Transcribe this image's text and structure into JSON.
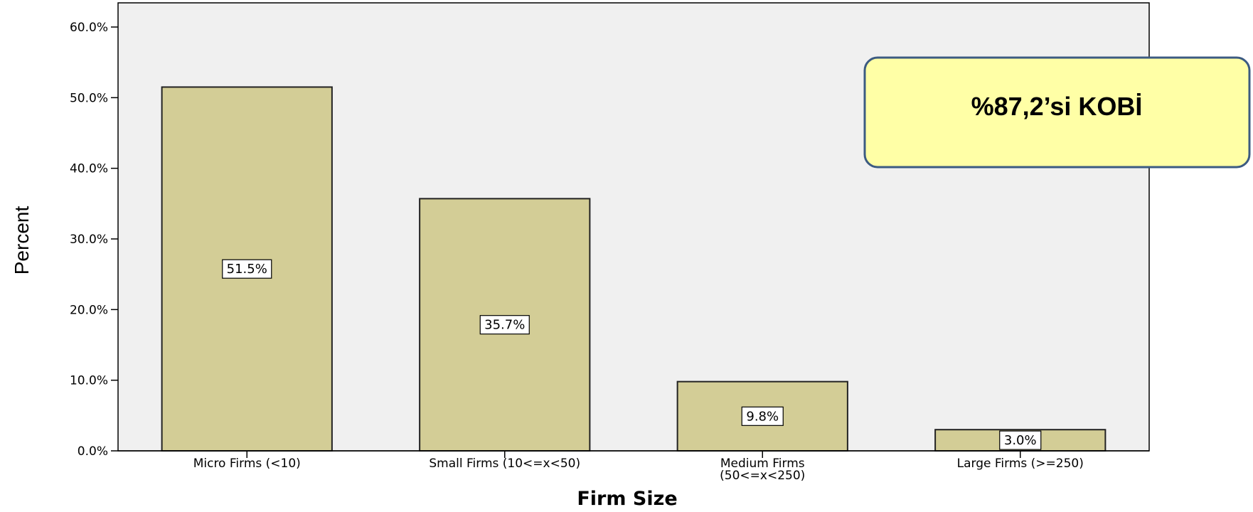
{
  "chart_data": {
    "type": "bar",
    "xlabel": "Firm Size",
    "ylabel": "Percent",
    "categories": [
      [
        "Micro Firms (<10)"
      ],
      [
        "Small Firms (10<=x<50)"
      ],
      [
        "Medium Firms",
        "(50<=x<250)"
      ],
      [
        "Large  Firms (>=250)"
      ]
    ],
    "values": [
      51.5,
      35.7,
      9.8,
      3.0
    ],
    "data_labels": [
      "51.5%",
      "35.7%",
      "9.8%",
      "3.0%"
    ],
    "ylim": [
      0,
      60
    ],
    "yticks": [
      "0.0%",
      "10.0%",
      "20.0%",
      "30.0%",
      "40.0%",
      "50.0%",
      "60.0%"
    ],
    "ytick_values": [
      0,
      10,
      20,
      30,
      40,
      50,
      60
    ],
    "grid": false,
    "bar_color": "#d3cd96",
    "plot_background": "#f0f0f0"
  },
  "callout": {
    "text": "%87,2’si KOBİ",
    "fill": "#ffffa6",
    "border": "#3c5b82"
  }
}
